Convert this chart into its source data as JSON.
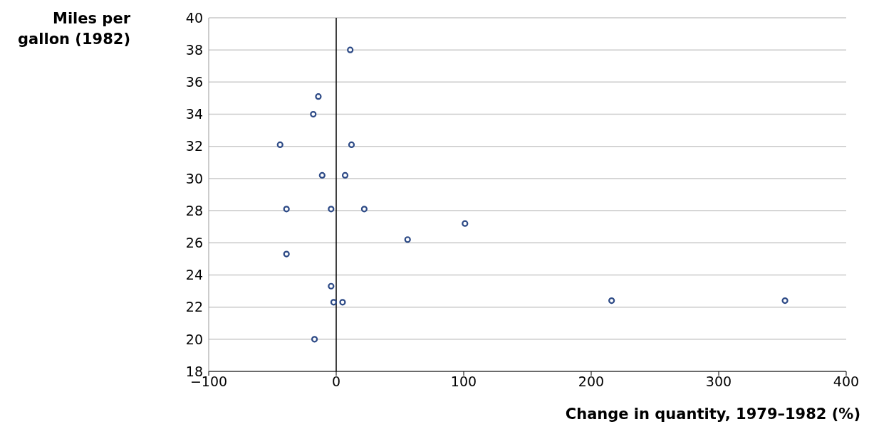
{
  "chart_data": {
    "type": "scatter",
    "xlabel": "Change in quantity, 1979–1982 (%)",
    "ylabel": "Miles per gallon (1982)",
    "x": [
      11,
      -14,
      -18,
      -44,
      12,
      -11,
      7,
      -39,
      -4,
      22,
      101,
      56,
      -39,
      -4,
      -2,
      5,
      216,
      352,
      -17
    ],
    "series": [
      {
        "color": "#2d4a86",
        "values": [
          38.0,
          35.1,
          34.0,
          32.1,
          32.1,
          30.2,
          30.2,
          28.1,
          28.1,
          28.1,
          27.2,
          26.2,
          25.3,
          23.3,
          22.3,
          22.3,
          22.4,
          22.4,
          20.0
        ]
      }
    ],
    "xlim": [
      -100,
      400
    ],
    "xticks": [
      -100,
      0,
      100,
      200,
      300,
      400
    ],
    "ylim": [
      18,
      40
    ],
    "yticks": [
      18,
      20,
      22,
      24,
      26,
      28,
      30,
      32,
      34,
      36,
      38,
      40
    ],
    "grid": "y",
    "marker": "circle",
    "ref_lines": [
      {
        "axis": "x",
        "value": 0,
        "color": "#000000"
      }
    ]
  }
}
